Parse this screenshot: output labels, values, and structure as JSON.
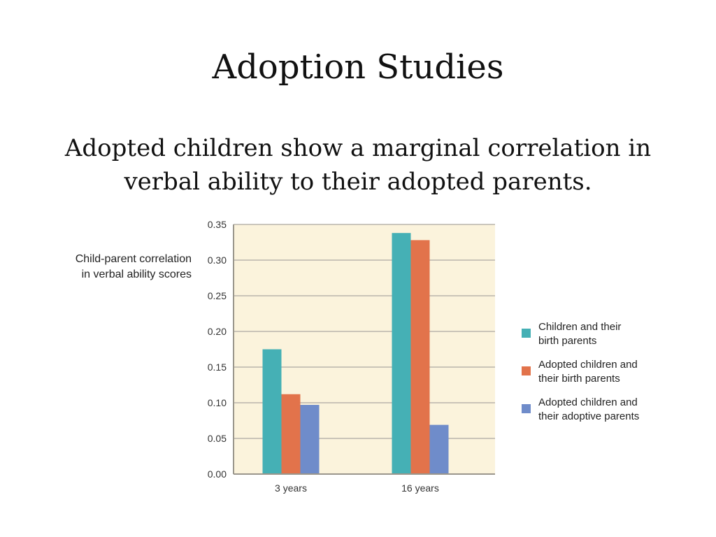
{
  "slide": {
    "title": "Adoption Studies",
    "subtitle_line1": "Adopted children show a marginal correlation in",
    "subtitle_line2": "verbal ability to their adopted parents."
  },
  "chart_data": {
    "type": "bar",
    "ylabel_line1": "Child-parent correlation",
    "ylabel_line2": "in verbal ability scores",
    "xlabel": "",
    "categories": [
      "3 years",
      "16 years"
    ],
    "ylim": [
      0,
      0.35
    ],
    "yticks": [
      "0.00",
      "0.05",
      "0.10",
      "0.15",
      "0.20",
      "0.25",
      "0.30",
      "0.35"
    ],
    "grid": true,
    "legend_position": "right",
    "plot_background": "#fbf3dc",
    "series": [
      {
        "name_line1": "Children and their",
        "name_line2": "birth parents",
        "color": "#45b0b5",
        "values": [
          0.175,
          0.338
        ]
      },
      {
        "name_line1": "Adopted children and",
        "name_line2": "their birth parents",
        "color": "#e2734b",
        "values": [
          0.112,
          0.328
        ]
      },
      {
        "name_line1": "Adopted children and",
        "name_line2": "their adoptive parents",
        "color": "#6f8cca",
        "values": [
          0.097,
          0.069
        ]
      }
    ]
  }
}
